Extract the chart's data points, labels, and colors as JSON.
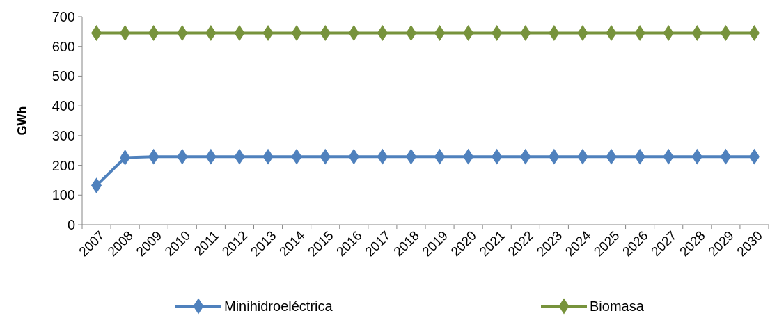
{
  "chart_data": {
    "type": "line",
    "ylabel": "GWh",
    "categories": [
      "2007",
      "2008",
      "2009",
      "2010",
      "2011",
      "2012",
      "2013",
      "2014",
      "2015",
      "2016",
      "2017",
      "2018",
      "2019",
      "2020",
      "2021",
      "2022",
      "2023",
      "2024",
      "2025",
      "2026",
      "2027",
      "2028",
      "2029",
      "2030"
    ],
    "series": [
      {
        "name": "Minihidroeléctrica",
        "color": "#4f81bd",
        "values": [
          132,
          226,
          229,
          229,
          229,
          229,
          229,
          229,
          229,
          229,
          229,
          229,
          229,
          229,
          229,
          229,
          229,
          229,
          229,
          229,
          229,
          229,
          229,
          229
        ]
      },
      {
        "name": "Biomasa",
        "color": "#77933c",
        "values": [
          645,
          645,
          645,
          645,
          645,
          645,
          645,
          645,
          645,
          645,
          645,
          645,
          645,
          645,
          645,
          645,
          645,
          645,
          645,
          645,
          645,
          645,
          645,
          645
        ]
      }
    ],
    "ylim": [
      0,
      700
    ],
    "yticks": [
      0,
      100,
      200,
      300,
      400,
      500,
      600,
      700
    ],
    "grid": false,
    "legend": "bottom",
    "marker": "diamond",
    "line_style": "solid"
  }
}
